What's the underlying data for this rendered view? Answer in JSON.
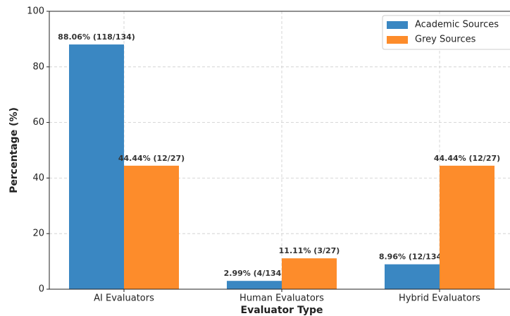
{
  "chart_data": {
    "type": "bar",
    "categories": [
      "AI Evaluators",
      "Human Evaluators",
      "Hybrid Evaluators"
    ],
    "series": [
      {
        "name": "Academic Sources",
        "color": "#3a87c2",
        "values": [
          88.06,
          2.99,
          8.96
        ],
        "value_labels": [
          "88.06% (118/134)",
          "2.99% (4/134)",
          "8.96% (12/134)"
        ]
      },
      {
        "name": "Grey Sources",
        "color": "#fd8c2b",
        "values": [
          44.44,
          11.11,
          44.44
        ],
        "value_labels": [
          "44.44% (12/27)",
          "11.11% (3/27)",
          "44.44% (12/27)"
        ]
      }
    ],
    "xlabel": "Evaluator Type",
    "ylabel": "Percentage (%)",
    "ylim": [
      0,
      100
    ],
    "yticks": [
      0,
      20,
      40,
      60,
      80,
      100
    ],
    "grid": true,
    "legend": "upper right"
  }
}
